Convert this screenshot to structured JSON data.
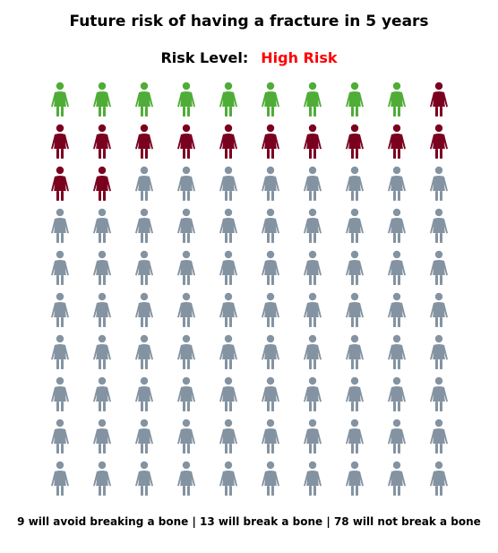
{
  "title": "Future risk of having a fracture in 5 years",
  "risk_label": "Risk Level:",
  "risk_value": "High Risk",
  "risk_value_color": "#ff0000",
  "footer": "9 will avoid breaking a bone | 13 will break a bone | 78 will not break a bone",
  "chart_data": {
    "type": "pictogram",
    "total": 100,
    "rows": 10,
    "cols": 10,
    "icon": "woman-figure-icon",
    "fill_order": "row-major",
    "categories": [
      {
        "name": "avoid breaking a bone",
        "count": 9,
        "color": "#4fad37"
      },
      {
        "name": "break a bone",
        "count": 13,
        "color": "#7a0020"
      },
      {
        "name": "not break a bone",
        "count": 78,
        "color": "#8493a1"
      }
    ]
  }
}
